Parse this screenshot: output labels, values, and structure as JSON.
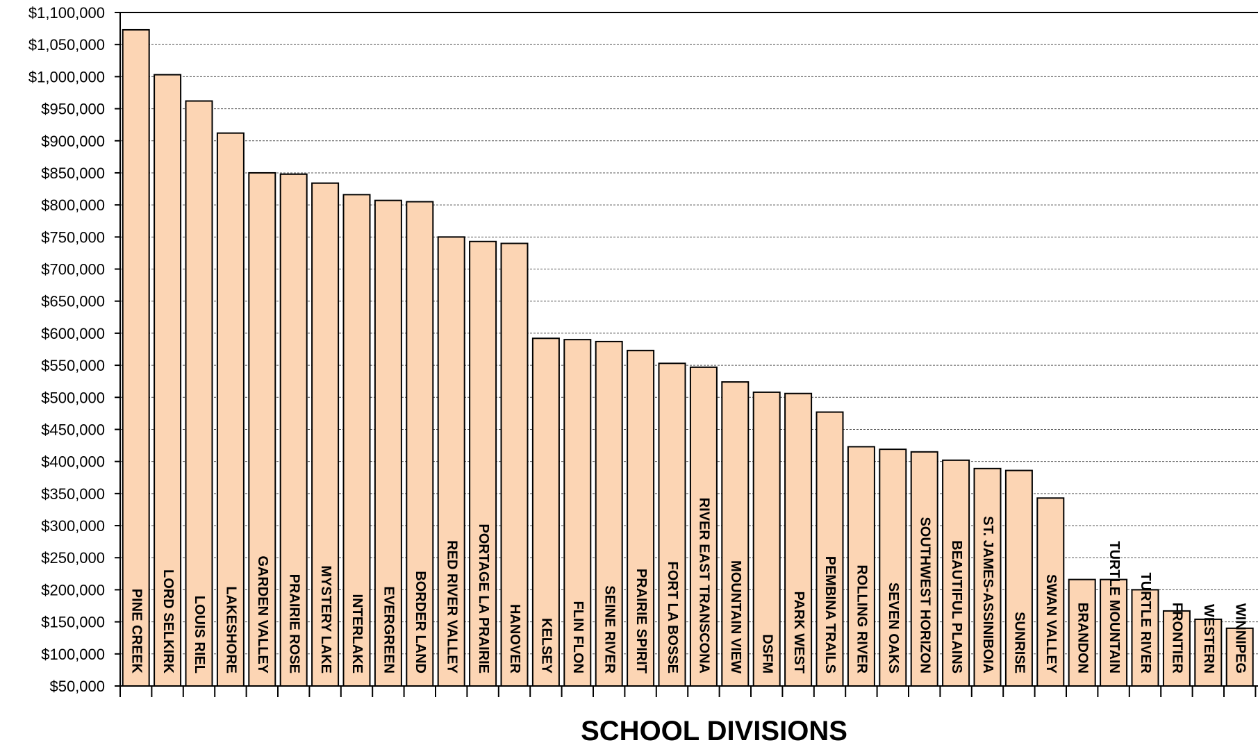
{
  "chart_data": {
    "type": "bar",
    "title": "",
    "xlabel": "SCHOOL  DIVISIONS",
    "ylabel": "",
    "ylim": [
      50000,
      1100000
    ],
    "ytick_step": 50000,
    "grid": true,
    "bar_color": "#FCD5B4",
    "categories": [
      "PINE CREEK",
      "LORD SELKIRK",
      "LOUIS RIEL",
      "LAKESHORE",
      "GARDEN VALLEY",
      "PRAIRIE ROSE",
      "MYSTERY LAKE",
      "INTERLAKE",
      "EVERGREEN",
      "BORDER LAND",
      "RED RIVER VALLEY",
      "PORTAGE LA PRAIRIE",
      "HANOVER",
      "KELSEY",
      "FLIN FLON",
      "SEINE RIVER",
      "PRAIRIE SPIRIT",
      "FORT LA BOSSE",
      "RIVER EAST TRANSCONA",
      "MOUNTAIN VIEW",
      "DSFM",
      "PARK WEST",
      "PEMBINA TRAILS",
      "ROLLING RIVER",
      "SEVEN OAKS",
      "SOUTHWEST HORIZON",
      "BEAUTIFUL PLAINS",
      "ST. JAMES-ASSINIBOIA",
      "SUNRISE",
      "SWAN VALLEY",
      "BRANDON",
      "TURTLE MOUNTAIN",
      "TURTLE RIVER",
      "FRONTIER",
      "WESTERN",
      "WINNIPEG"
    ],
    "values": [
      1073000,
      1003000,
      962000,
      912000,
      850000,
      848000,
      834000,
      816000,
      807000,
      805000,
      750000,
      743000,
      740000,
      592000,
      590000,
      587000,
      573000,
      553000,
      547000,
      524000,
      508000,
      506000,
      477000,
      423000,
      419000,
      415000,
      402000,
      389000,
      386000,
      343000,
      216000,
      216000,
      200000,
      167000,
      154000,
      140000
    ]
  }
}
